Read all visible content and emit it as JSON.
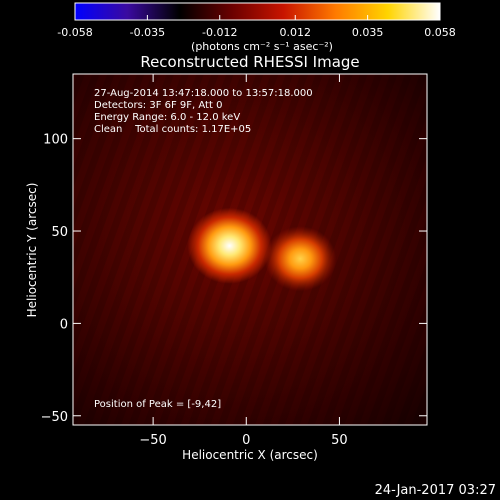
{
  "colorbar": {
    "tick_labels": [
      "-0.058",
      "-0.035",
      "-0.012",
      "0.012",
      "0.035",
      "0.058"
    ],
    "min": -0.058,
    "max": 0.058,
    "unit_label": "(photons cm⁻² s⁻¹ asec⁻²)",
    "colors": [
      "#0000ff",
      "#3a0aa0",
      "#000000",
      "#6a0000",
      "#c81400",
      "#ff7a00",
      "#ffd400",
      "#ffffff"
    ]
  },
  "chart_data": {
    "type": "heatmap",
    "title": "Reconstructed RHESSI Image",
    "xlabel": "Heliocentric X (arcsec)",
    "ylabel": "Heliocentric Y (arcsec)",
    "xlim": [
      -93,
      97
    ],
    "ylim": [
      -55,
      135
    ],
    "xticks": [
      -50,
      0,
      50
    ],
    "xtick_labels": [
      "−50",
      "0",
      "50"
    ],
    "yticks": [
      -50,
      0,
      50,
      100
    ],
    "ytick_labels": [
      "−50",
      "0",
      "50",
      "100"
    ],
    "sources": [
      {
        "x": -9,
        "y": 42,
        "relative_intensity": 1.0
      },
      {
        "x": 29,
        "y": 35,
        "relative_intensity": 0.65
      }
    ],
    "annotations": [
      "27-Aug-2014 13:47:18.000 to 13:57:18.000",
      "Detectors: 3F 6F 9F, Att 0",
      "Energy Range: 6.0 - 12.0 keV",
      "Clean    Total counts: 1.17E+05"
    ],
    "peak_label": "Position of Peak = [-9,42]"
  },
  "footer_timestamp": "24-Jan-2017 03:27"
}
